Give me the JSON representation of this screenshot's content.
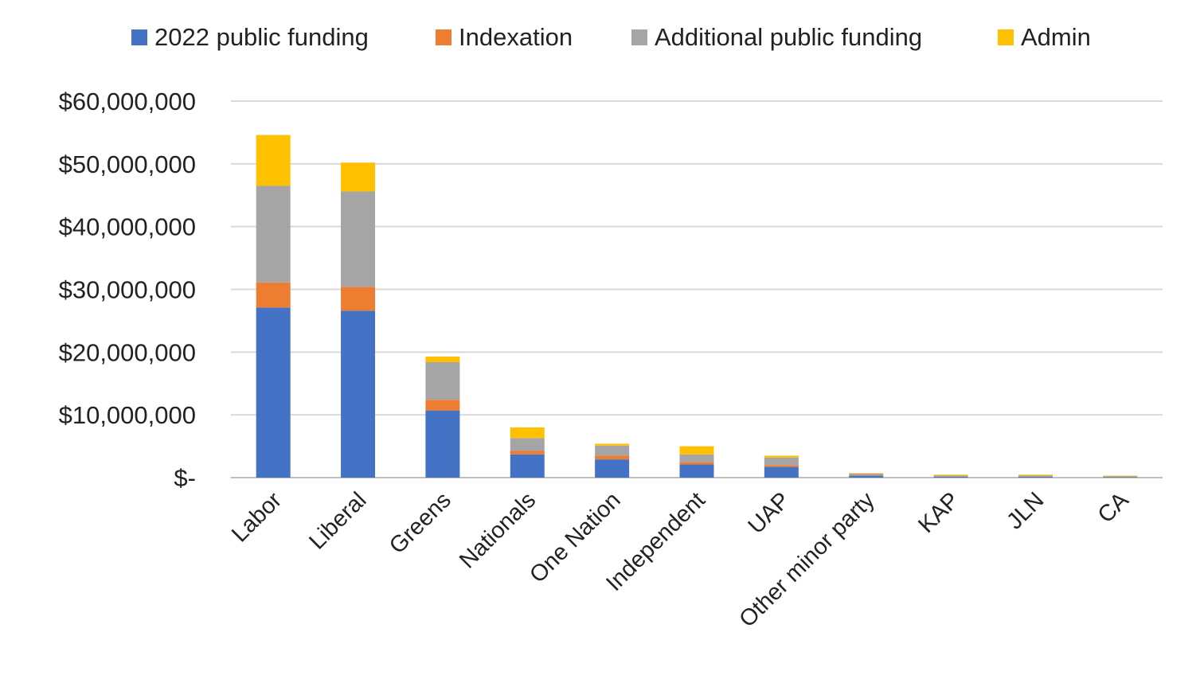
{
  "chart_data": {
    "type": "bar",
    "stacked": true,
    "title": "",
    "xlabel": "",
    "ylabel": "",
    "ylim": [
      0,
      60000000
    ],
    "grid": true,
    "legend_position": "top",
    "categories": [
      "Labor",
      "Liberal",
      "Greens",
      "Nationals",
      "One Nation",
      "Independent",
      "UAP",
      "Other minor party",
      "KAP",
      "JLN",
      "CA"
    ],
    "y_tick_labels": [
      "$-",
      "$10,000,000",
      "$20,000,000",
      "$30,000,000",
      "$40,000,000",
      "$50,000,000",
      "$60,000,000"
    ],
    "y_tick_values": [
      0,
      10000000,
      20000000,
      30000000,
      40000000,
      50000000,
      60000000
    ],
    "series": [
      {
        "name": "2022 public funding",
        "color": "#4472C4",
        "values": [
          27100000,
          26600000,
          10700000,
          3700000,
          2900000,
          2100000,
          1700000,
          300000,
          150000,
          150000,
          100000
        ]
      },
      {
        "name": "Indexation",
        "color": "#ED7D31",
        "values": [
          4000000,
          3800000,
          1700000,
          600000,
          600000,
          400000,
          300000,
          50000,
          30000,
          30000,
          20000
        ]
      },
      {
        "name": "Additional public funding",
        "color": "#A5A5A5",
        "values": [
          15400000,
          15200000,
          6000000,
          2000000,
          1600000,
          1200000,
          1200000,
          300000,
          150000,
          150000,
          100000
        ]
      },
      {
        "name": "Admin",
        "color": "#FFC000",
        "values": [
          8100000,
          4600000,
          900000,
          1700000,
          300000,
          1300000,
          300000,
          50000,
          150000,
          150000,
          100000
        ]
      }
    ]
  }
}
